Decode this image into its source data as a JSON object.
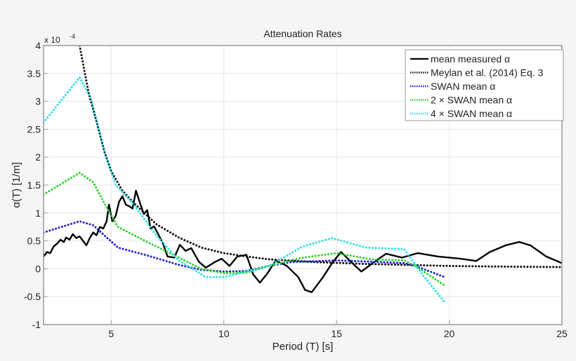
{
  "chart_data": {
    "type": "line",
    "title": "Attenuation Rates",
    "xlabel": "Period (T) [s]",
    "ylabel": "α(T) [1/m]",
    "y_multiplier": "x 10",
    "y_multiplier_exp": "-4",
    "xlim": [
      2,
      25
    ],
    "ylim": [
      -1,
      4
    ],
    "xticks": [
      5,
      10,
      15,
      20,
      25
    ],
    "yticks": [
      -1,
      -0.5,
      0,
      0.5,
      1,
      1.5,
      2,
      2.5,
      3,
      3.5,
      4
    ],
    "grid": true,
    "legend_position": "top-right",
    "series": [
      {
        "name": "mean measured α",
        "color": "#000000",
        "style": "solid",
        "points": [
          [
            2,
            0.22
          ],
          [
            2.15,
            0.3
          ],
          [
            2.3,
            0.28
          ],
          [
            2.45,
            0.4
          ],
          [
            2.6,
            0.45
          ],
          [
            2.75,
            0.52
          ],
          [
            2.9,
            0.48
          ],
          [
            3.0,
            0.56
          ],
          [
            3.15,
            0.52
          ],
          [
            3.3,
            0.62
          ],
          [
            3.45,
            0.55
          ],
          [
            3.6,
            0.58
          ],
          [
            3.75,
            0.5
          ],
          [
            3.9,
            0.42
          ],
          [
            4.05,
            0.55
          ],
          [
            4.2,
            0.65
          ],
          [
            4.35,
            0.6
          ],
          [
            4.5,
            0.75
          ],
          [
            4.65,
            0.72
          ],
          [
            4.8,
            0.85
          ],
          [
            4.9,
            1.15
          ],
          [
            5.05,
            0.85
          ],
          [
            5.2,
            0.95
          ],
          [
            5.35,
            1.2
          ],
          [
            5.5,
            1.3
          ],
          [
            5.65,
            1.15
          ],
          [
            5.8,
            1.12
          ],
          [
            5.95,
            1.08
          ],
          [
            6.1,
            1.4
          ],
          [
            6.3,
            1.15
          ],
          [
            6.45,
            0.98
          ],
          [
            6.6,
            1.05
          ],
          [
            6.75,
            0.72
          ],
          [
            6.9,
            0.76
          ],
          [
            7.05,
            0.65
          ],
          [
            7.3,
            0.45
          ],
          [
            7.5,
            0.22
          ],
          [
            7.8,
            0.2
          ],
          [
            8.05,
            0.43
          ],
          [
            8.3,
            0.32
          ],
          [
            8.55,
            0.37
          ],
          [
            8.9,
            0.12
          ],
          [
            9.2,
            0.02
          ],
          [
            9.6,
            0.12
          ],
          [
            9.9,
            0.18
          ],
          [
            10.25,
            0.05
          ],
          [
            10.6,
            0.22
          ],
          [
            11.0,
            0.25
          ],
          [
            11.3,
            -0.1
          ],
          [
            11.6,
            -0.25
          ],
          [
            11.9,
            -0.1
          ],
          [
            12.3,
            0.15
          ],
          [
            12.8,
            0.05
          ],
          [
            13.3,
            -0.15
          ],
          [
            13.6,
            -0.38
          ],
          [
            13.9,
            -0.42
          ],
          [
            14.4,
            -0.15
          ],
          [
            14.8,
            0.1
          ],
          [
            15.2,
            0.3
          ],
          [
            15.7,
            0.1
          ],
          [
            16.1,
            -0.05
          ],
          [
            16.6,
            0.1
          ],
          [
            17.2,
            0.27
          ],
          [
            17.9,
            0.2
          ],
          [
            18.6,
            0.28
          ],
          [
            19.5,
            0.22
          ],
          [
            20.5,
            0.18
          ],
          [
            21.2,
            0.14
          ],
          [
            21.8,
            0.3
          ],
          [
            22.5,
            0.42
          ],
          [
            23.1,
            0.48
          ],
          [
            23.6,
            0.42
          ],
          [
            24.3,
            0.22
          ],
          [
            25,
            0.1
          ]
        ]
      },
      {
        "name": "Meylan et al. (2014) Eq. 3",
        "color": "#111111",
        "style": "dotted",
        "points": [
          [
            3.6,
            4.0
          ],
          [
            4.0,
            3.15
          ],
          [
            4.35,
            2.64
          ],
          [
            4.7,
            2.1
          ],
          [
            5.0,
            1.75
          ],
          [
            5.5,
            1.4
          ],
          [
            6.0,
            1.18
          ],
          [
            7.0,
            0.8
          ],
          [
            8.0,
            0.56
          ],
          [
            9.0,
            0.38
          ],
          [
            10.0,
            0.28
          ],
          [
            11.0,
            0.22
          ],
          [
            12.0,
            0.17
          ],
          [
            14.0,
            0.12
          ],
          [
            16.0,
            0.09
          ],
          [
            18.0,
            0.07
          ],
          [
            20.0,
            0.05
          ],
          [
            22.0,
            0.04
          ],
          [
            25.0,
            0.03
          ]
        ]
      },
      {
        "name": "SWAN mean α",
        "color": "#2020d0",
        "style": "dotted",
        "points": [
          [
            2,
            0.65
          ],
          [
            3.6,
            0.85
          ],
          [
            4.2,
            0.78
          ],
          [
            5.3,
            0.38
          ],
          [
            6.5,
            0.25
          ],
          [
            8,
            0.07
          ],
          [
            9,
            -0.02
          ],
          [
            10,
            -0.05
          ],
          [
            11,
            -0.04
          ],
          [
            12,
            0.05
          ],
          [
            13,
            0.12
          ],
          [
            15,
            0.15
          ],
          [
            17,
            0.12
          ],
          [
            18,
            0.1
          ],
          [
            18.5,
            0.05
          ],
          [
            19.8,
            -0.15
          ]
        ]
      },
      {
        "name": "2 × SWAN mean α",
        "color": "#30d030",
        "style": "dotted",
        "points": [
          [
            2,
            1.33
          ],
          [
            3.6,
            1.72
          ],
          [
            4.2,
            1.55
          ],
          [
            4.8,
            1.1
          ],
          [
            5.3,
            0.75
          ],
          [
            6.5,
            0.5
          ],
          [
            8,
            0.2
          ],
          [
            9,
            0.0
          ],
          [
            10,
            -0.08
          ],
          [
            11,
            -0.07
          ],
          [
            12,
            0.05
          ],
          [
            13.5,
            0.2
          ],
          [
            15,
            0.28
          ],
          [
            16.5,
            0.17
          ],
          [
            18,
            0.15
          ],
          [
            18.5,
            0.05
          ],
          [
            19.8,
            -0.3
          ]
        ]
      },
      {
        "name": "4 × SWAN mean α",
        "color": "#30e0e8",
        "style": "dotted",
        "points": [
          [
            2,
            2.62
          ],
          [
            3.6,
            3.43
          ],
          [
            4.1,
            3.05
          ],
          [
            4.7,
            2.1
          ],
          [
            5.2,
            1.5
          ],
          [
            6,
            1.15
          ],
          [
            7,
            0.6
          ],
          [
            8,
            0.15
          ],
          [
            9.2,
            -0.15
          ],
          [
            10,
            -0.15
          ],
          [
            11,
            -0.05
          ],
          [
            12,
            0.05
          ],
          [
            13.5,
            0.4
          ],
          [
            14.8,
            0.55
          ],
          [
            16.3,
            0.38
          ],
          [
            18,
            0.35
          ],
          [
            18.8,
            -0.1
          ],
          [
            19.8,
            -0.6
          ]
        ]
      }
    ]
  }
}
